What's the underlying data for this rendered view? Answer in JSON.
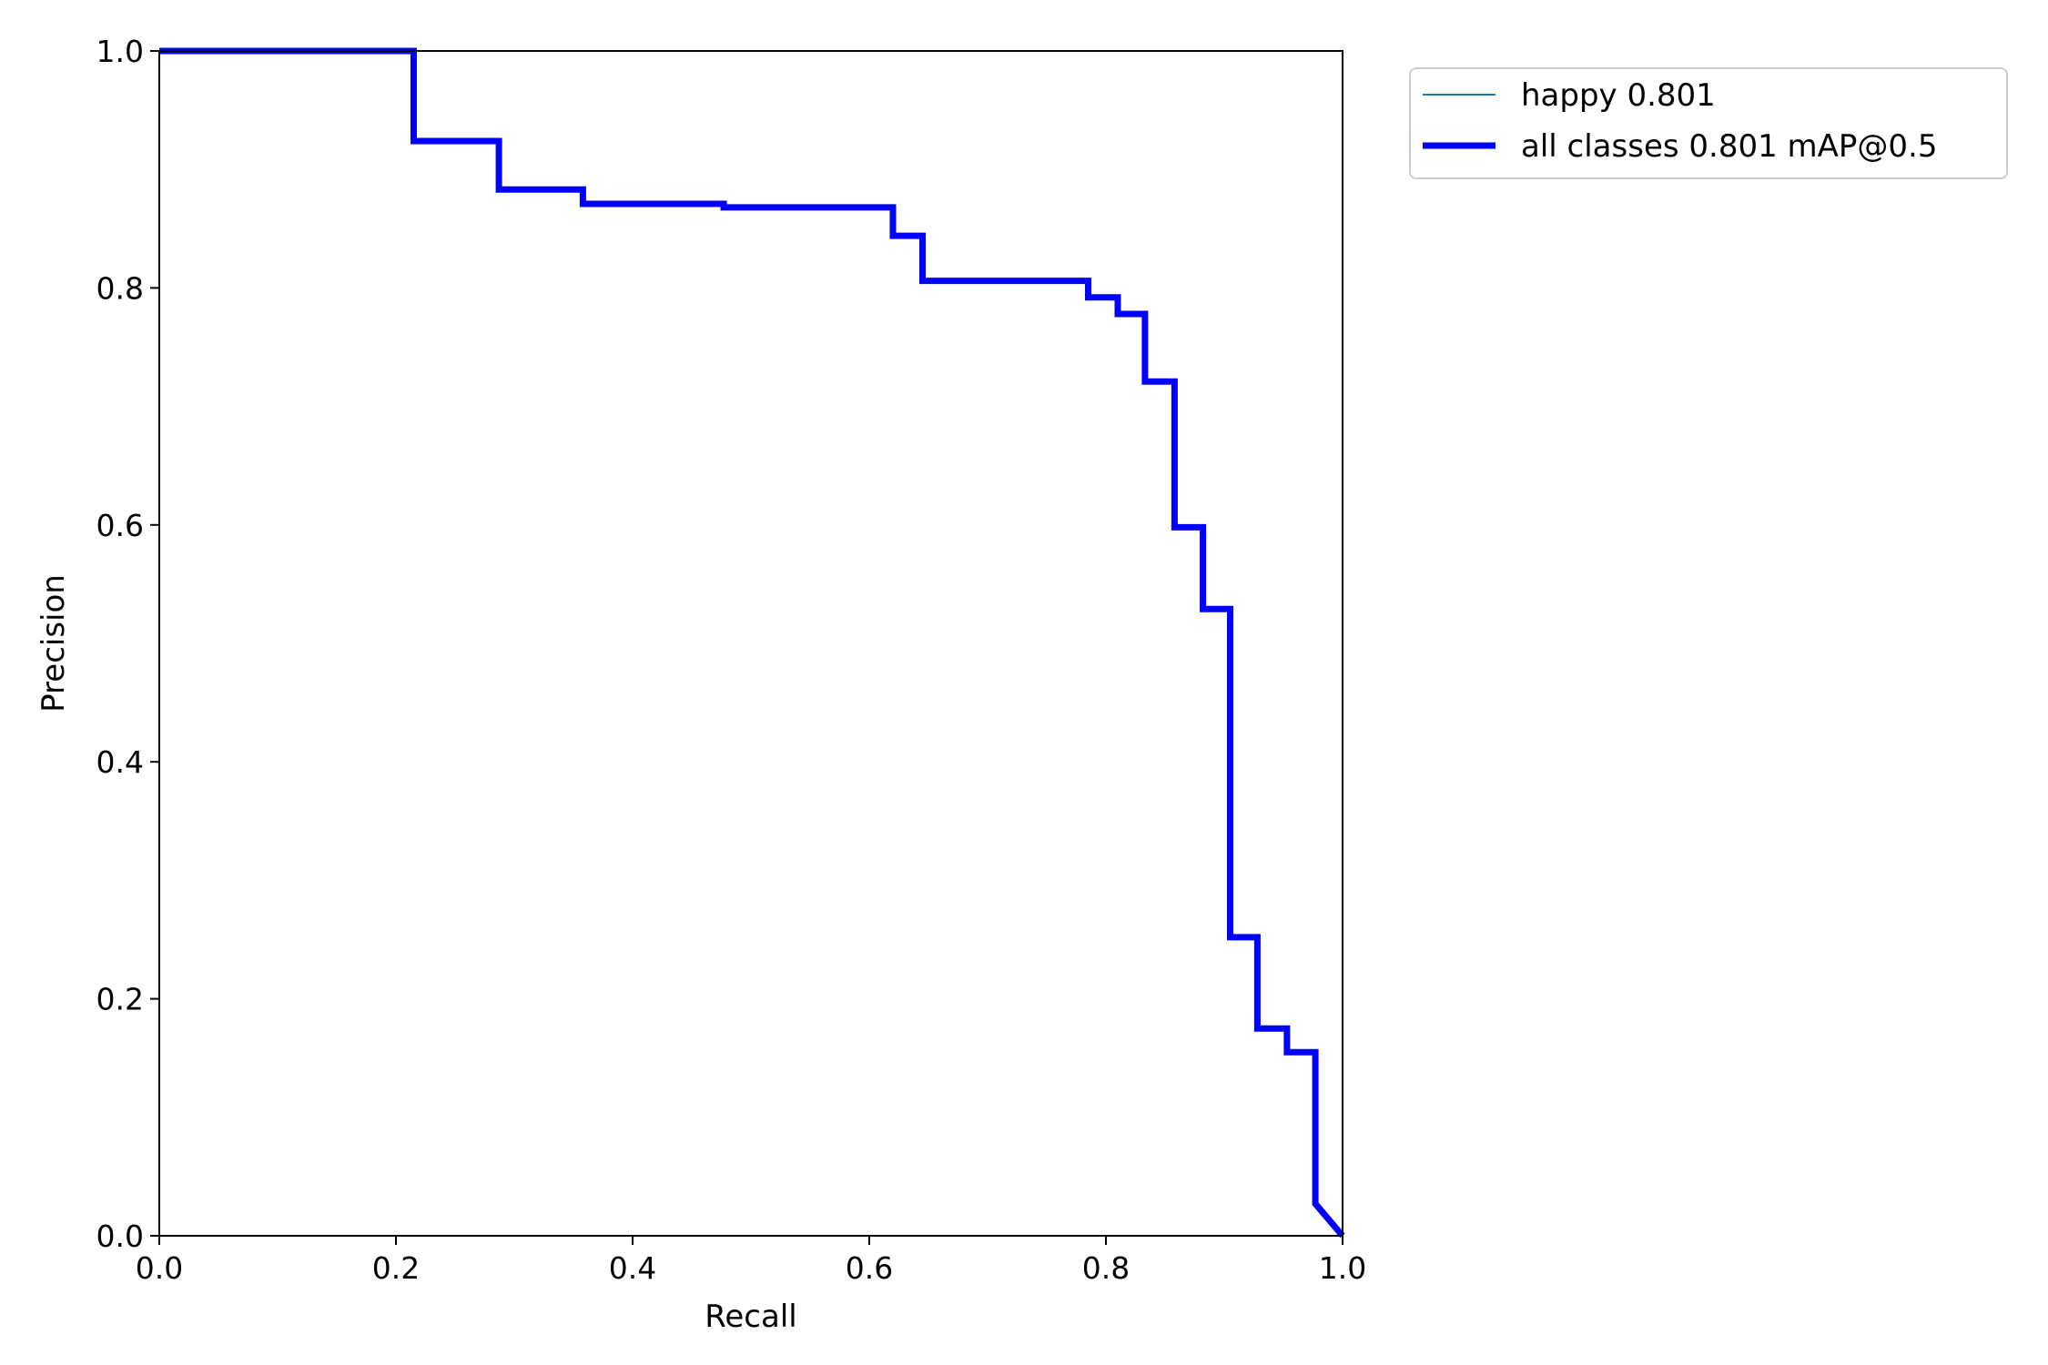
{
  "chart_data": {
    "type": "line",
    "title": "",
    "xlabel": "Recall",
    "ylabel": "Precision",
    "xlim": [
      0.0,
      1.0
    ],
    "ylim": [
      0.0,
      1.0
    ],
    "xticks": [
      "0.0",
      "0.2",
      "0.4",
      "0.6",
      "0.8",
      "1.0"
    ],
    "yticks": [
      "0.0",
      "0.2",
      "0.4",
      "0.6",
      "0.8",
      "1.0"
    ],
    "grid": false,
    "legend_position": "outside-top-right",
    "series": [
      {
        "name": "happy 0.801",
        "color": "#1f77b4",
        "x": [
          0.0,
          0.215,
          0.215,
          0.287,
          0.287,
          0.358,
          0.358,
          0.477,
          0.477,
          0.62,
          0.62,
          0.645,
          0.645,
          0.785,
          0.785,
          0.81,
          0.81,
          0.833,
          0.833,
          0.858,
          0.858,
          0.882,
          0.882,
          0.905,
          0.905,
          0.928,
          0.928,
          0.953,
          0.953,
          0.977,
          0.977,
          1.0
        ],
        "y": [
          1.0,
          1.0,
          0.924,
          0.924,
          0.883,
          0.883,
          0.871,
          0.871,
          0.868,
          0.868,
          0.844,
          0.844,
          0.806,
          0.806,
          0.792,
          0.792,
          0.778,
          0.778,
          0.721,
          0.721,
          0.598,
          0.598,
          0.529,
          0.529,
          0.252,
          0.252,
          0.175,
          0.175,
          0.155,
          0.155,
          0.027,
          0.0
        ]
      },
      {
        "name": "all classes 0.801 mAP@0.5",
        "color": "#0000ff",
        "x": [
          0.0,
          0.215,
          0.215,
          0.287,
          0.287,
          0.358,
          0.358,
          0.477,
          0.477,
          0.62,
          0.62,
          0.645,
          0.645,
          0.785,
          0.785,
          0.81,
          0.81,
          0.833,
          0.833,
          0.858,
          0.858,
          0.882,
          0.882,
          0.905,
          0.905,
          0.928,
          0.928,
          0.953,
          0.953,
          0.977,
          0.977,
          1.0
        ],
        "y": [
          1.0,
          1.0,
          0.924,
          0.924,
          0.883,
          0.883,
          0.871,
          0.871,
          0.868,
          0.868,
          0.844,
          0.844,
          0.806,
          0.806,
          0.792,
          0.792,
          0.778,
          0.778,
          0.721,
          0.721,
          0.598,
          0.598,
          0.529,
          0.529,
          0.252,
          0.252,
          0.175,
          0.175,
          0.155,
          0.155,
          0.027,
          0.0
        ]
      }
    ]
  }
}
